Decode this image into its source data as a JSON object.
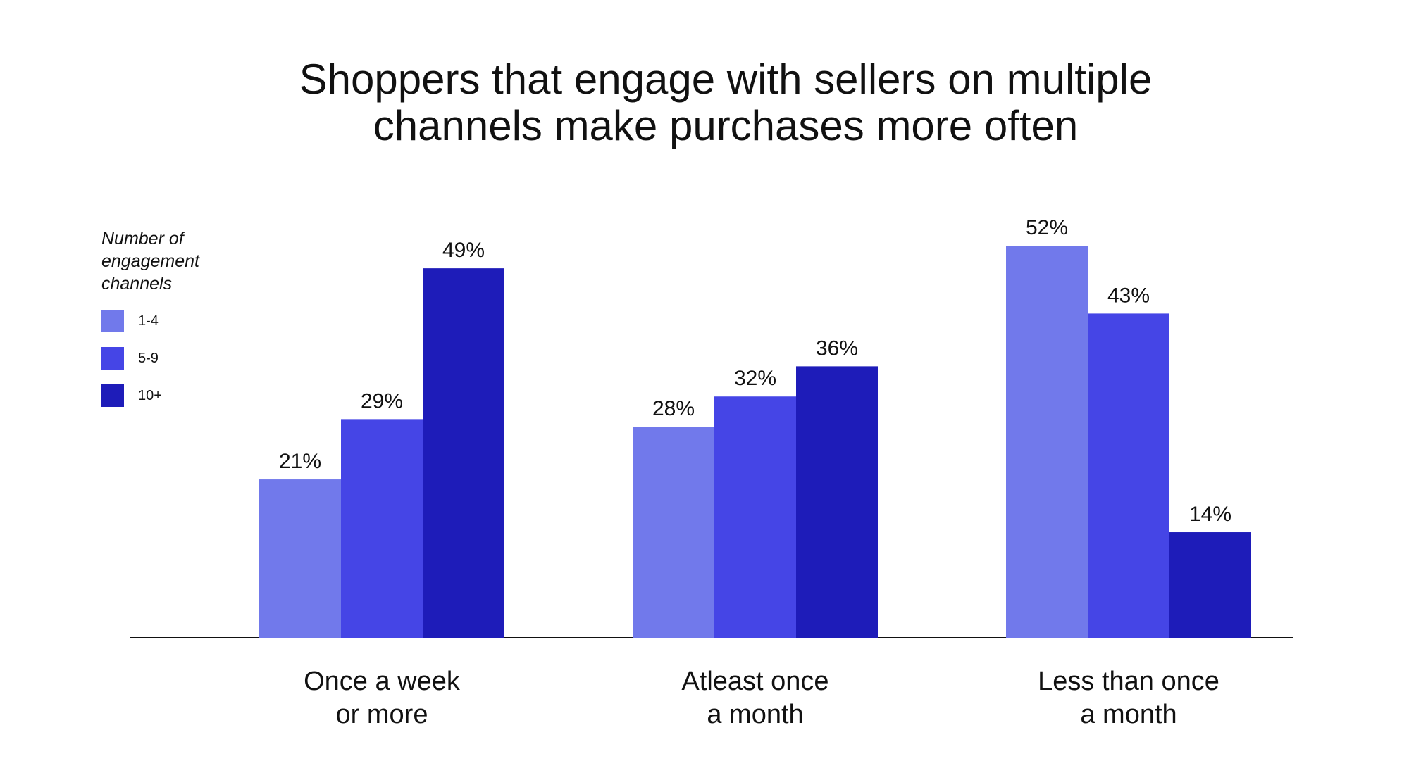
{
  "chart_data": {
    "type": "bar",
    "title": "Shoppers that engage with sellers on multiple channels make purchases more often",
    "title_lines": [
      "Shoppers that engage with sellers on multiple",
      "channels make purchases more often"
    ],
    "categories": [
      "Once a week or more",
      "Atleast once a month",
      "Less than once a month"
    ],
    "category_lines": [
      [
        "Once a week",
        "or more"
      ],
      [
        "Atleast once",
        "a month"
      ],
      [
        "Less than once",
        "a month"
      ]
    ],
    "legend_title": "Number of engagement channels",
    "legend_title_lines": [
      "Number of",
      "engagement",
      "channels"
    ],
    "legend_position": "top-left",
    "series": [
      {
        "name": "1-4",
        "color": "#7179eb",
        "values": [
          21,
          28,
          52
        ]
      },
      {
        "name": "5-9",
        "color": "#4545e6",
        "values": [
          29,
          32,
          43
        ]
      },
      {
        "name": "10+",
        "color": "#1e1cb9",
        "values": [
          49,
          36,
          14
        ]
      }
    ],
    "value_format": "{v}%",
    "ylim": [
      0,
      52
    ],
    "grid": false
  }
}
